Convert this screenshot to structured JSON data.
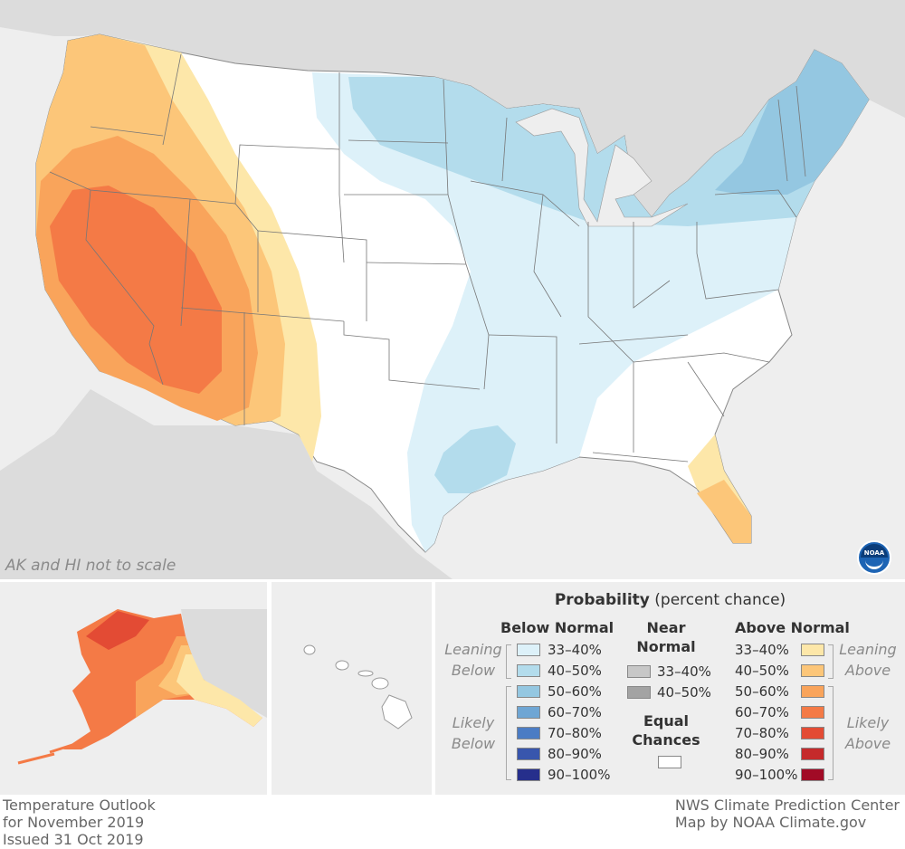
{
  "map": {
    "scale_note": "AK and HI not to scale",
    "logo_text": "NOAA",
    "logo_icon": "noaa-logo-icon"
  },
  "legend": {
    "title_bold": "Probability",
    "title_rest": "(percent chance)",
    "below": {
      "heading": "Below Normal",
      "leaning_label_1": "Leaning",
      "leaning_label_2": "Below",
      "likely_label_1": "Likely",
      "likely_label_2": "Below",
      "rows": [
        {
          "label": "33–40%",
          "color": "#ddf1f9"
        },
        {
          "label": "40–50%",
          "color": "#b3dcec"
        },
        {
          "label": "50–60%",
          "color": "#94c7e1"
        },
        {
          "label": "60–70%",
          "color": "#6fa6d4"
        },
        {
          "label": "70–80%",
          "color": "#4b7cc4"
        },
        {
          "label": "80–90%",
          "color": "#3856ad"
        },
        {
          "label": "90–100%",
          "color": "#262f8c"
        }
      ]
    },
    "near": {
      "heading_1": "Near",
      "heading_2": "Normal",
      "rows": [
        {
          "label": "33–40%",
          "color": "#c7c7c7"
        },
        {
          "label": "40–50%",
          "color": "#a3a3a3"
        }
      ],
      "equal_1": "Equal",
      "equal_2": "Chances",
      "equal_color": "#ffffff"
    },
    "above": {
      "heading": "Above Normal",
      "leaning_label_1": "Leaning",
      "leaning_label_2": "Above",
      "likely_label_1": "Likely",
      "likely_label_2": "Above",
      "rows": [
        {
          "label": "33–40%",
          "color": "#fde7a9"
        },
        {
          "label": "40–50%",
          "color": "#fcc679"
        },
        {
          "label": "50–60%",
          "color": "#f9a45b"
        },
        {
          "label": "60–70%",
          "color": "#f47a46"
        },
        {
          "label": "70–80%",
          "color": "#e34b34"
        },
        {
          "label": "80–90%",
          "color": "#c52a2b"
        },
        {
          "label": "90–100%",
          "color": "#a10b26"
        }
      ]
    }
  },
  "footer": {
    "left_1": "Temperature Outlook",
    "left_2": "for November 2019",
    "left_3": "Issued 31 Oct 2019",
    "right_1": "NWS Climate Prediction Center",
    "right_2": "Map by NOAA Climate.gov"
  }
}
